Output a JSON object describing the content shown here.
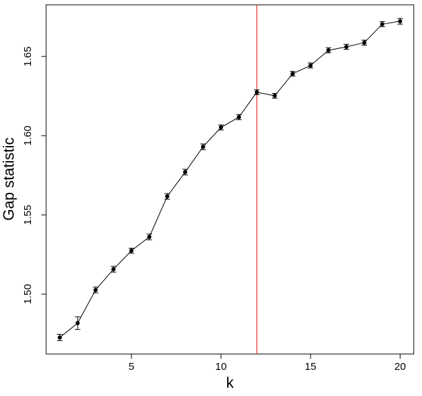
{
  "chart_data": {
    "type": "errorbar-line",
    "x_label": "k",
    "y_label": "Gap statistic",
    "x": [
      1,
      2,
      3,
      4,
      5,
      6,
      7,
      8,
      9,
      10,
      11,
      12,
      13,
      14,
      15,
      16,
      17,
      18,
      19,
      20
    ],
    "series": [
      {
        "color": "#000000",
        "values": [
          1.4726,
          1.4817,
          1.5026,
          1.5157,
          1.5274,
          1.5361,
          1.5617,
          1.577,
          1.593,
          1.6052,
          1.6117,
          1.6274,
          1.6252,
          1.6391,
          1.6443,
          1.6539,
          1.6561,
          1.6587,
          1.6704,
          1.6722
        ],
        "errors": [
          0.002,
          0.004,
          0.0018,
          0.0018,
          0.0016,
          0.0018,
          0.0018,
          0.0018,
          0.0018,
          0.0016,
          0.0016,
          0.0015,
          0.0015,
          0.0015,
          0.0016,
          0.0016,
          0.0016,
          0.0016,
          0.0016,
          0.0018
        ]
      }
    ],
    "vline": {
      "x": 12,
      "color": "#e8302a"
    },
    "xlim": [
      0.24,
      20.76
    ],
    "ylim": [
      1.4622,
      1.6826
    ],
    "xticks": [
      5,
      10,
      15,
      20
    ],
    "yticks": [
      {
        "value": 1.5,
        "label": "1.50"
      },
      {
        "value": 1.55,
        "label": "1.55"
      },
      {
        "value": 1.6,
        "label": "1.60"
      },
      {
        "value": 1.65,
        "label": "1.65"
      }
    ]
  }
}
